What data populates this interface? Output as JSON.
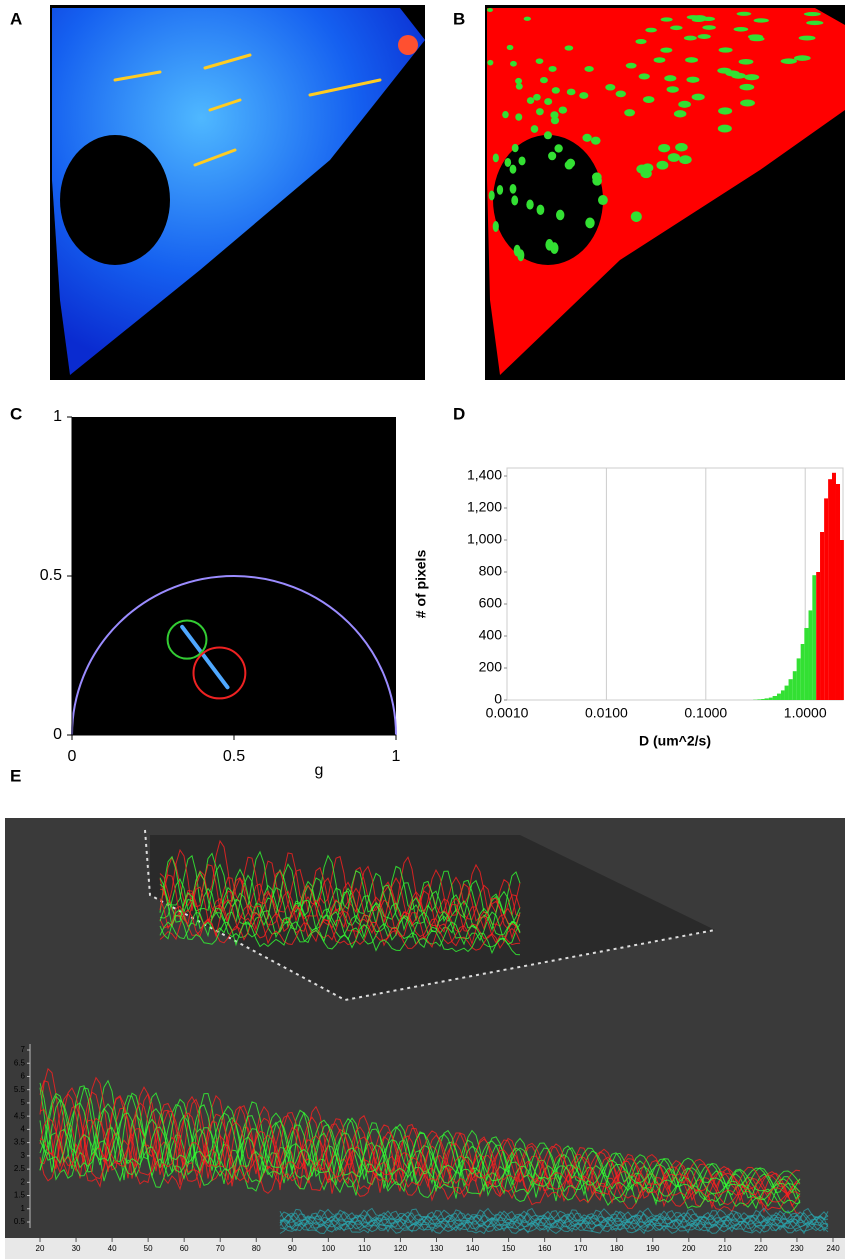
{
  "panel_labels": [
    "A",
    "B",
    "C",
    "D",
    "E"
  ],
  "chart_data": [
    {
      "type": "phasor",
      "xlabel": "g",
      "xlim": [
        0,
        1
      ],
      "ylim": [
        0,
        1
      ],
      "xticks": [
        0,
        0.5,
        1
      ],
      "yticks": [
        0,
        0.5,
        1
      ],
      "curve_color": "#9b8cff",
      "circles": [
        {
          "color": "#33cc33",
          "x": 0.355,
          "y": 0.3,
          "radius": 0.06
        },
        {
          "color": "#ee2222",
          "x": 0.455,
          "y": 0.195,
          "radius": 0.08
        }
      ]
    },
    {
      "type": "histogram",
      "xlabel": "D (um^2/s)",
      "ylabel": "# of pixels",
      "log_x": true,
      "grid": "x",
      "xlim": [
        0.001,
        2.4
      ],
      "ylim": [
        0,
        1450
      ],
      "xticks": [
        {
          "value": 0.001,
          "label": "0.0010"
        },
        {
          "value": 0.01,
          "label": "0.0100"
        },
        {
          "value": 0.1,
          "label": "0.1000"
        },
        {
          "value": 1,
          "label": "1.0000"
        }
      ],
      "yticks": [
        0,
        200,
        400,
        600,
        800,
        {
          "value": 1000,
          "label": "1,000"
        },
        {
          "value": 1200,
          "label": "1,200"
        },
        {
          "value": 1400,
          "label": "1,400"
        }
      ],
      "series": [
        {
          "color": "#33e033",
          "bins": [
            0.3,
            0.33,
            0.36,
            0.39,
            0.43,
            0.47,
            0.52,
            0.57,
            0.62,
            0.68,
            0.75,
            0.82,
            0.9,
            0.98,
            1.08,
            1.18,
            1.29
          ],
          "values": [
            2,
            4,
            6,
            10,
            15,
            25,
            40,
            60,
            90,
            130,
            180,
            260,
            350,
            450,
            560,
            780
          ]
        },
        {
          "color": "#ff0000",
          "bins": [
            1.29,
            1.41,
            1.55,
            1.7,
            1.86,
            2.04,
            2.24,
            2.45
          ],
          "values": [
            800,
            1050,
            1260,
            1380,
            1420,
            1350,
            1000
          ]
        }
      ]
    },
    {
      "type": "surface",
      "xlim": [
        20,
        240
      ],
      "ylim": [
        0.5,
        7
      ],
      "xticks": [
        20,
        30,
        40,
        50,
        60,
        70,
        80,
        90,
        100,
        110,
        120,
        130,
        140,
        150,
        160,
        170,
        180,
        190,
        200,
        210,
        220,
        230,
        240
      ],
      "yticks": [
        0.5,
        1,
        1.5,
        2,
        2.5,
        3,
        3.5,
        4,
        4.5,
        5,
        5.5,
        6,
        6.5,
        7
      ]
    }
  ]
}
